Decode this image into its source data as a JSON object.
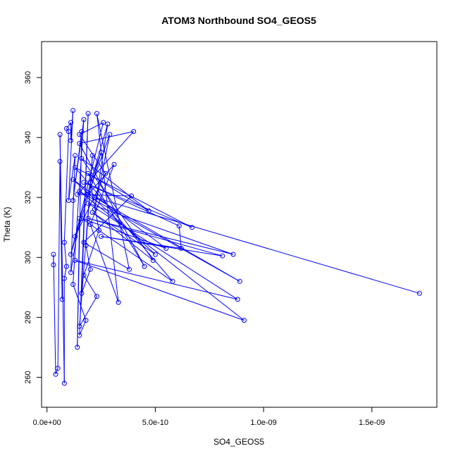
{
  "chart_data": {
    "type": "scatter",
    "title": "ATOM3 Northbound SO4_GEOS5",
    "xlabel": "SO4_GEOS5",
    "ylabel": "Theta (K)",
    "xlim": [
      -2.5e-11,
      1.8e-09
    ],
    "ylim": [
      250,
      372
    ],
    "x_ticks": [
      0,
      5e-10,
      1e-09,
      1.5e-09
    ],
    "x_tick_labels": [
      "0.0e+00",
      "5.0e-10",
      "1.0e-09",
      "1.5e-09"
    ],
    "y_ticks": [
      260,
      280,
      300,
      320,
      340,
      360
    ],
    "y_tick_labels": [
      "260",
      "280",
      "300",
      "320",
      "340",
      "360"
    ],
    "grid": false,
    "line_color": "#0000ff",
    "marker": "open-circle",
    "series": [
      {
        "values": [
          [
            1.72e-09,
            288
          ],
          [
            2.2e-10,
            320
          ],
          [
            8.9e-10,
            292
          ],
          [
            1.5e-10,
            322
          ],
          [
            9.1e-10,
            279
          ],
          [
            1.3e-10,
            299
          ],
          [
            8.8e-10,
            286
          ],
          [
            1.9e-10,
            318
          ],
          [
            8.6e-10,
            301
          ],
          [
            1.9e-10,
            313
          ],
          [
            8.1e-10,
            300.5
          ],
          [
            2.5e-10,
            307
          ],
          [
            6.2e-10,
            303
          ],
          [
            6.1e-10,
            310.5
          ],
          [
            1.7e-10,
            325
          ],
          [
            6.7e-10,
            310
          ],
          [
            1.3e-10,
            330
          ],
          [
            5.8e-10,
            292
          ],
          [
            1.6e-10,
            313
          ],
          [
            5.5e-10,
            303
          ],
          [
            1.2e-10,
            326
          ],
          [
            5e-10,
            301
          ],
          [
            2.1e-10,
            315
          ],
          [
            4.9e-10,
            299
          ],
          [
            1.6e-10,
            333
          ],
          [
            4.7e-10,
            315.5
          ],
          [
            1.9e-10,
            328
          ],
          [
            4.5e-10,
            297
          ],
          [
            1.5e-10,
            338
          ],
          [
            4e-10,
            342
          ],
          [
            1.4e-10,
            321
          ],
          [
            3.9e-10,
            320.5
          ],
          [
            1.7e-10,
            305
          ],
          [
            3.8e-10,
            296
          ],
          [
            2.3e-10,
            348
          ],
          [
            3.3e-10,
            285
          ],
          [
            2e-10,
            311
          ],
          [
            3.1e-10,
            331
          ],
          [
            1.9e-10,
            321
          ],
          [
            2.9e-10,
            341
          ],
          [
            2.2e-10,
            316
          ],
          [
            2.8e-10,
            344.5
          ],
          [
            1.3e-10,
            307
          ],
          [
            2.7e-10,
            328
          ],
          [
            1.5e-10,
            341
          ],
          [
            2.6e-10,
            345
          ],
          [
            1.1e-10,
            301
          ],
          [
            2.5e-10,
            335
          ],
          [
            2e-10,
            325
          ],
          [
            2.4e-10,
            309
          ],
          [
            1.7e-10,
            294
          ],
          [
            2.3e-10,
            287
          ],
          [
            1.5e-10,
            277
          ],
          [
            2.1e-10,
            334
          ],
          [
            1.8e-10,
            304
          ],
          [
            2e-10,
            296
          ],
          [
            1.6e-10,
            288
          ],
          [
            1.9e-10,
            348
          ],
          [
            1.5e-10,
            274
          ],
          [
            1.8e-10,
            279
          ],
          [
            1.2e-10,
            291
          ],
          [
            1.7e-10,
            346
          ],
          [
            1.2e-10,
            319
          ],
          [
            1.6e-10,
            342
          ],
          [
            1.4e-10,
            270
          ],
          [
            1.5e-10,
            313
          ],
          [
            1.1e-10,
            295
          ],
          [
            1.3e-10,
            334
          ],
          [
            1e-10,
            319
          ],
          [
            1.2e-10,
            349
          ],
          [
            1.1e-10,
            339
          ],
          [
            1.1e-10,
            345
          ],
          [
            9e-11,
            343
          ],
          [
            1e-10,
            342
          ],
          [
            8e-11,
            305
          ],
          [
            9e-11,
            297
          ],
          [
            8e-11,
            293
          ],
          [
            8e-11,
            258
          ],
          [
            6e-11,
            341
          ],
          [
            7e-11,
            286
          ],
          [
            6e-11,
            332
          ],
          [
            5e-11,
            263
          ],
          [
            4e-11,
            261
          ],
          [
            3e-11,
            301
          ],
          [
            3e-11,
            297.5
          ]
        ]
      }
    ]
  }
}
